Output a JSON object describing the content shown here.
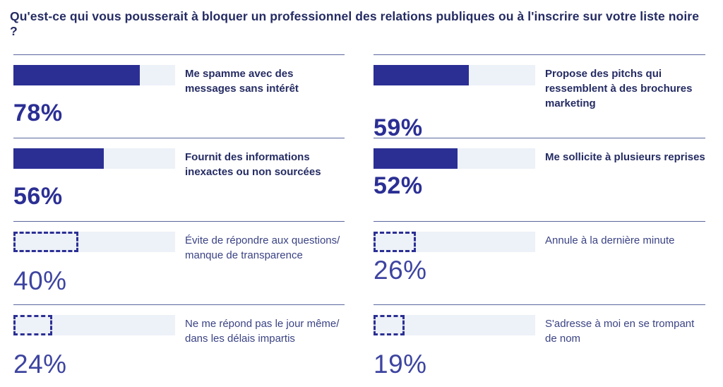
{
  "title": "Qu'est-ce qui vous pousserait à bloquer un professionnel des relations publiques ou à l'inscrire sur votre liste noire ?",
  "chart_data": {
    "type": "bar",
    "orientation": "horizontal",
    "unit": "%",
    "value_range": [
      0,
      100
    ],
    "layout": "two-column grid, reading order left-to-right",
    "bar_styles": {
      "solid": "filled bar for top answers",
      "dashed": "dashed outline bar for lower answers"
    },
    "colors": {
      "bar_fill": "#2b2f94",
      "bar_track": "#edf1f8",
      "title_text": "#252c63",
      "label_bold": "#252c63",
      "label_regular": "#3b4384",
      "pct_bold": "#2b2f94",
      "pct_light": "#3d44a0",
      "rule_line": "#5a66a0"
    },
    "items": [
      {
        "label": "Me spamme avec des messages sans intérêt",
        "value": 78,
        "value_label": "78%",
        "style": "solid"
      },
      {
        "label": "Propose des pitchs qui ressemblent à des brochures marketing",
        "value": 59,
        "value_label": "59%",
        "style": "solid"
      },
      {
        "label": "Fournit des informations inexactes ou non sourcées",
        "value": 56,
        "value_label": "56%",
        "style": "solid"
      },
      {
        "label": "Me sollicite à plusieurs reprises",
        "value": 52,
        "value_label": "52%",
        "style": "solid"
      },
      {
        "label": "Évite de répondre aux questions/ manque de transparence",
        "value": 40,
        "value_label": "40%",
        "style": "dashed"
      },
      {
        "label": "Annule à la dernière minute",
        "value": 26,
        "value_label": "26%",
        "style": "dashed"
      },
      {
        "label": "Ne me répond pas le jour même/ dans les délais impartis",
        "value": 24,
        "value_label": "24%",
        "style": "dashed"
      },
      {
        "label": "S'adresse à moi en se trompant de nom",
        "value": 19,
        "value_label": "19%",
        "style": "dashed"
      }
    ]
  }
}
